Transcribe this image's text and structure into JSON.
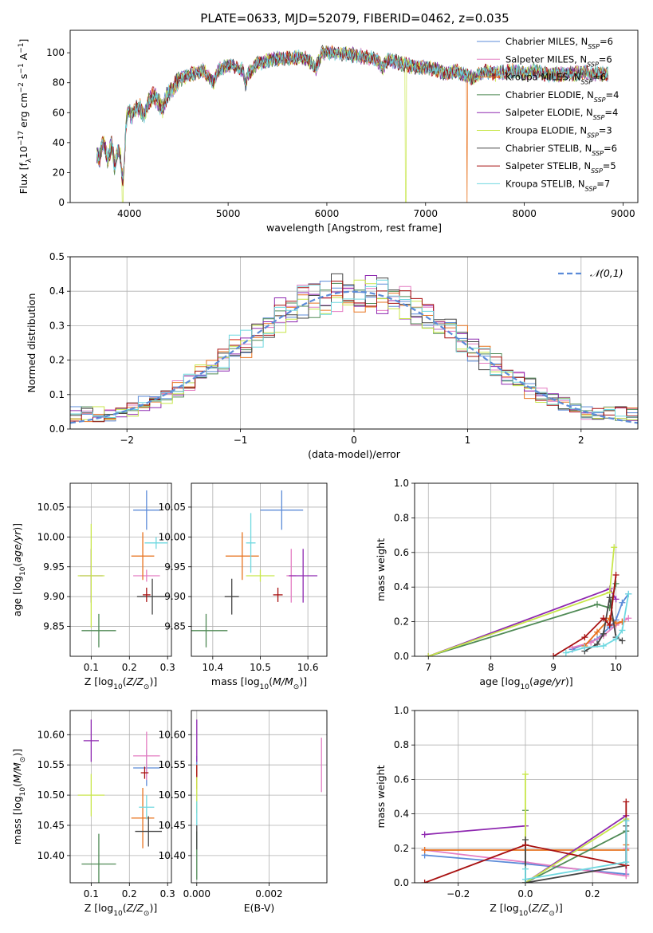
{
  "figure": {
    "title": "PLATE=0633, MJD=52079, FIBERID=0462, z=0.035"
  },
  "series": [
    {
      "name": "Chabrier MILES",
      "nssp": "6",
      "color": "#5b8bd8"
    },
    {
      "name": "Salpeter MILES",
      "nssp": "6",
      "color": "#e47cc2"
    },
    {
      "name": "Kroupa MILES",
      "nssp": "6",
      "color": "#e8731f"
    },
    {
      "name": "Chabrier ELODIE",
      "nssp": "4",
      "color": "#4f8a55"
    },
    {
      "name": "Salpeter ELODIE",
      "nssp": "4",
      "color": "#8e28b0"
    },
    {
      "name": "Kroupa ELODIE",
      "nssp": "3",
      "color": "#c8e64a"
    },
    {
      "name": "Chabrier STELIB",
      "nssp": "6",
      "color": "#444444"
    },
    {
      "name": "Salpeter STELIB",
      "nssp": "5",
      "color": "#a81010"
    },
    {
      "name": "Kroupa STELIB",
      "nssp": "7",
      "color": "#6fd8e0"
    }
  ],
  "chart_data": [
    {
      "id": "spectrum",
      "type": "line",
      "xlabel": "wavelength [Angstrom, rest frame]",
      "ylabel": "Flux [f_λ 10^-17 erg cm^-2 s^-1 A^-1]",
      "xlim": [
        3400,
        9150
      ],
      "ylim": [
        0,
        115
      ],
      "xticks": [
        4000,
        5000,
        6000,
        7000,
        8000,
        9000
      ],
      "yticks": [
        0,
        20,
        40,
        60,
        80,
        100
      ],
      "legend": "top-right",
      "x": [
        3670,
        3700,
        3740,
        3780,
        3820,
        3850,
        3880,
        3910,
        3935,
        3950,
        3965,
        3990,
        4020,
        4060,
        4100,
        4150,
        4200,
        4250,
        4300,
        4340,
        4380,
        4430,
        4480,
        4550,
        4650,
        4750,
        4850,
        4900,
        5000,
        5100,
        5150,
        5175,
        5200,
        5300,
        5400,
        5500,
        5600,
        5700,
        5800,
        5890,
        5950,
        6100,
        6200,
        6300,
        6400,
        6500,
        6563,
        6620,
        6700,
        6800,
        6900,
        7000,
        7100,
        7200,
        7300,
        7400,
        7500,
        7600,
        7700,
        7800,
        7900,
        8000,
        8100,
        8200,
        8300,
        8400,
        8500,
        8600,
        8700,
        8850
      ],
      "y": [
        32,
        30,
        42,
        28,
        40,
        24,
        35,
        30,
        12,
        28,
        52,
        62,
        58,
        62,
        64,
        58,
        68,
        72,
        66,
        62,
        72,
        76,
        80,
        84,
        86,
        88,
        80,
        88,
        92,
        90,
        88,
        78,
        86,
        93,
        95,
        96,
        96,
        97,
        96,
        90,
        100,
        100,
        99,
        98,
        97,
        96,
        90,
        95,
        94,
        92,
        90,
        90,
        89,
        86,
        88,
        85,
        83,
        88,
        86,
        87,
        88,
        86,
        88,
        86,
        85,
        86,
        86,
        87,
        86,
        86
      ],
      "dropouts": [
        {
          "series": "Kroupa ELODIE",
          "x": 3930
        },
        {
          "series": "Kroupa ELODIE",
          "x": 6800
        },
        {
          "series": "Kroupa MILES",
          "x": 7420
        }
      ]
    },
    {
      "id": "residuals",
      "type": "step",
      "xlabel": "(data-model)/error",
      "ylabel": "Normed distribution",
      "xlim": [
        -2.5,
        2.5
      ],
      "ylim": [
        0,
        0.5
      ],
      "xticks": [
        -2,
        -1,
        0,
        1,
        2
      ],
      "yticks": [
        0.0,
        0.1,
        0.2,
        0.3,
        0.4,
        0.5
      ],
      "grid": true,
      "legend": "top-right",
      "reference_curve": {
        "name": "𝒩(0,1)",
        "color": "#5b8bd8",
        "mean": 0,
        "sigma": 1
      },
      "bin_width": 0.1
    },
    {
      "id": "age-vs-Z",
      "type": "errorbar",
      "xlabel": "Z [log10(Z/Z⊙)]",
      "ylabel": "age [log10(age/yr)]",
      "xlim": [
        0.045,
        0.31
      ],
      "ylim": [
        9.8,
        10.09
      ],
      "xticks": [
        0.1,
        0.2,
        0.3
      ],
      "yticks": [
        9.85,
        9.9,
        9.95,
        10.0,
        10.05
      ],
      "grid": true,
      "points": [
        {
          "series": "Chabrier MILES",
          "x": 0.245,
          "xerr": 0.035,
          "y": 10.045,
          "yerr": 0.033
        },
        {
          "series": "Salpeter MILES",
          "x": 0.245,
          "xerr": 0.035,
          "y": 9.935,
          "yerr": 0.01
        },
        {
          "series": "Kroupa MILES",
          "x": 0.235,
          "xerr": 0.03,
          "y": 9.968,
          "yerr": 0.04
        },
        {
          "series": "Chabrier ELODIE",
          "x": 0.12,
          "xerr": 0.045,
          "y": 9.843,
          "yerr": 0.028
        },
        {
          "series": "Salpeter ELODIE",
          "x": 0.1,
          "xerr": 0.03,
          "y": 9.935,
          "yerr": 0.045
        },
        {
          "series": "Kroupa ELODIE",
          "x": 0.1,
          "xerr": 0.035,
          "y": 9.935,
          "yerr": 0.087
        },
        {
          "series": "Chabrier STELIB",
          "x": 0.26,
          "xerr": 0.04,
          "y": 9.9,
          "yerr": 0.03
        },
        {
          "series": "Salpeter STELIB",
          "x": 0.245,
          "xerr": 0.01,
          "y": 9.903,
          "yerr": 0.012
        },
        {
          "series": "Kroupa STELIB",
          "x": 0.27,
          "xerr": 0.03,
          "y": 9.99,
          "yerr": 0.01
        }
      ]
    },
    {
      "id": "age-vs-mass",
      "type": "errorbar",
      "xlabel": "mass [log10(M/M⊙)]",
      "ylabel": "",
      "xlim": [
        10.355,
        10.64
      ],
      "ylim": [
        9.8,
        10.09
      ],
      "xticks": [
        10.4,
        10.5,
        10.6
      ],
      "yticks": [
        9.85,
        9.9,
        9.95,
        10.0,
        10.05
      ],
      "grid": true,
      "points": [
        {
          "series": "Chabrier MILES",
          "x": 10.545,
          "xerr": 0.045,
          "y": 10.045,
          "yerr": 0.033
        },
        {
          "series": "Salpeter MILES",
          "x": 10.565,
          "xerr": 0.01,
          "y": 9.935,
          "yerr": 0.045
        },
        {
          "series": "Kroupa MILES",
          "x": 10.462,
          "xerr": 0.035,
          "y": 9.968,
          "yerr": 0.04
        },
        {
          "series": "Chabrier ELODIE",
          "x": 10.386,
          "xerr": 0.045,
          "y": 9.843,
          "yerr": 0.028
        },
        {
          "series": "Salpeter ELODIE",
          "x": 10.59,
          "xerr": 0.03,
          "y": 9.935,
          "yerr": 0.045
        },
        {
          "series": "Kroupa ELODIE",
          "x": 10.5,
          "xerr": 0.03,
          "y": 9.935,
          "yerr": 0.01
        },
        {
          "series": "Chabrier STELIB",
          "x": 10.44,
          "xerr": 0.015,
          "y": 9.9,
          "yerr": 0.03
        },
        {
          "series": "Salpeter STELIB",
          "x": 10.537,
          "xerr": 0.01,
          "y": 9.903,
          "yerr": 0.012
        },
        {
          "series": "Kroupa STELIB",
          "x": 10.48,
          "xerr": 0.01,
          "y": 9.99,
          "yerr": 0.05
        }
      ]
    },
    {
      "id": "weight-vs-age",
      "type": "line",
      "xlabel": "age [log10(age/yr)]",
      "ylabel": "mass weight",
      "xlim": [
        6.78,
        10.35
      ],
      "ylim": [
        0,
        1
      ],
      "xticks": [
        7,
        8,
        9,
        10
      ],
      "yticks": [
        0.0,
        0.2,
        0.4,
        0.6,
        0.8,
        1.0
      ],
      "grid": true,
      "lines": [
        {
          "series": "Chabrier MILES",
          "x": [
            9.3,
            9.7,
            9.9,
            10.0,
            10.1,
            10.2
          ],
          "y": [
            0.04,
            0.1,
            0.17,
            0.21,
            0.31,
            0.36
          ]
        },
        {
          "series": "Salpeter MILES",
          "x": [
            9.3,
            9.6,
            9.8,
            10.0,
            10.1,
            10.2
          ],
          "y": [
            0.05,
            0.08,
            0.12,
            0.18,
            0.2,
            0.22
          ]
        },
        {
          "series": "Kroupa MILES",
          "x": [
            9.5,
            9.7,
            9.9,
            10.0,
            10.1
          ],
          "y": [
            0.06,
            0.14,
            0.22,
            0.19,
            0.2
          ]
        },
        {
          "series": "Chabrier ELODIE",
          "x": [
            7.0,
            9.7,
            9.9,
            10.0
          ],
          "y": [
            0.0,
            0.3,
            0.28,
            0.42
          ]
        },
        {
          "series": "Salpeter ELODIE",
          "x": [
            7.0,
            9.9,
            10.0
          ],
          "y": [
            0.0,
            0.39,
            0.33
          ]
        },
        {
          "series": "Kroupa ELODIE",
          "x": [
            7.0,
            9.9,
            9.97
          ],
          "y": [
            0.0,
            0.37,
            0.63
          ]
        },
        {
          "series": "Chabrier STELIB",
          "x": [
            9.5,
            9.7,
            9.8,
            9.9,
            10.0,
            10.1
          ],
          "y": [
            0.03,
            0.07,
            0.13,
            0.34,
            0.11,
            0.09
          ]
        },
        {
          "series": "Salpeter STELIB",
          "x": [
            9.0,
            9.5,
            9.8,
            9.9,
            10.0
          ],
          "y": [
            0.0,
            0.11,
            0.22,
            0.18,
            0.47
          ]
        },
        {
          "series": "Kroupa STELIB",
          "x": [
            9.2,
            9.5,
            9.8,
            10.0,
            10.1,
            10.2
          ],
          "y": [
            0.02,
            0.05,
            0.06,
            0.1,
            0.15,
            0.36
          ]
        }
      ]
    },
    {
      "id": "mass-vs-Z",
      "type": "errorbar",
      "xlabel": "Z [log10(Z/Z⊙)]",
      "ylabel": "mass [log10(M/M⊙)]",
      "xlim": [
        0.045,
        0.31
      ],
      "ylim": [
        10.355,
        10.64
      ],
      "xticks": [
        0.1,
        0.2,
        0.3
      ],
      "yticks": [
        10.4,
        10.45,
        10.5,
        10.55,
        10.6
      ],
      "grid": true,
      "points": [
        {
          "series": "Chabrier MILES",
          "x": 0.245,
          "xerr": 0.035,
          "y": 10.545,
          "yerr": 0.03
        },
        {
          "series": "Salpeter MILES",
          "x": 0.245,
          "xerr": 0.035,
          "y": 10.565,
          "yerr": 0.04
        },
        {
          "series": "Kroupa MILES",
          "x": 0.235,
          "xerr": 0.03,
          "y": 10.462,
          "yerr": 0.05
        },
        {
          "series": "Chabrier ELODIE",
          "x": 0.12,
          "xerr": 0.045,
          "y": 10.386,
          "yerr": 0.05
        },
        {
          "series": "Salpeter ELODIE",
          "x": 0.1,
          "xerr": 0.02,
          "y": 10.59,
          "yerr": 0.035
        },
        {
          "series": "Kroupa ELODIE",
          "x": 0.1,
          "xerr": 0.035,
          "y": 10.5,
          "yerr": 0.035
        },
        {
          "series": "Chabrier STELIB",
          "x": 0.25,
          "xerr": 0.035,
          "y": 10.44,
          "yerr": 0.025
        },
        {
          "series": "Salpeter STELIB",
          "x": 0.24,
          "xerr": 0.01,
          "y": 10.537,
          "yerr": 0.01
        },
        {
          "series": "Kroupa STELIB",
          "x": 0.245,
          "xerr": 0.02,
          "y": 10.48,
          "yerr": 0.02
        }
      ]
    },
    {
      "id": "mass-vs-ebv",
      "type": "errorbar",
      "xlabel": "E(B-V)",
      "ylabel": "",
      "xlim": [
        -0.00015,
        0.0036
      ],
      "ylim": [
        10.355,
        10.64
      ],
      "xticks": [
        0.0,
        0.002
      ],
      "yticks": [
        10.4,
        10.45,
        10.5,
        10.55,
        10.6
      ],
      "grid": true,
      "points": [
        {
          "series": "Chabrier MILES",
          "x": 0.0,
          "xerr": 0,
          "y": 10.545,
          "yerr": 0.02
        },
        {
          "series": "Salpeter MILES",
          "x": 0.00345,
          "xerr": 0,
          "y": 10.55,
          "yerr": 0.045
        },
        {
          "series": "Kroupa MILES",
          "x": 0.0,
          "xerr": 0,
          "y": 10.53,
          "yerr": 0.02
        },
        {
          "series": "Chabrier ELODIE",
          "x": 0.0,
          "xerr": 0,
          "y": 10.4,
          "yerr": 0.04
        },
        {
          "series": "Salpeter ELODIE",
          "x": 0.0,
          "xerr": 0,
          "y": 10.59,
          "yerr": 0.035
        },
        {
          "series": "Kroupa ELODIE",
          "x": 0.0,
          "xerr": 0,
          "y": 10.5,
          "yerr": 0.03
        },
        {
          "series": "Chabrier STELIB",
          "x": 0.0,
          "xerr": 0,
          "y": 10.43,
          "yerr": 0.02
        },
        {
          "series": "Salpeter STELIB",
          "x": 0.0,
          "xerr": 0,
          "y": 10.54,
          "yerr": 0.01
        },
        {
          "series": "Kroupa STELIB",
          "x": 0.0,
          "xerr": 0,
          "y": 10.47,
          "yerr": 0.02
        }
      ]
    },
    {
      "id": "weight-vs-Z",
      "type": "line",
      "xlabel": "Z [log10(Z/Z⊙)]",
      "ylabel": "mass weight",
      "xlim": [
        -0.33,
        0.335
      ],
      "ylim": [
        0,
        1
      ],
      "xticks": [
        -0.2,
        0.0,
        0.2
      ],
      "yticks": [
        0.0,
        0.2,
        0.4,
        0.6,
        0.8,
        1.0
      ],
      "grid": true,
      "lines": [
        {
          "series": "Chabrier MILES",
          "x": [
            -0.3,
            0.0,
            0.3,
            0.3
          ],
          "y": [
            0.16,
            0.11,
            0.05,
            0.36
          ]
        },
        {
          "series": "Salpeter MILES",
          "x": [
            -0.3,
            0.0,
            0.3,
            0.3
          ],
          "y": [
            0.19,
            0.12,
            0.04,
            0.2
          ]
        },
        {
          "series": "Kroupa MILES",
          "x": [
            -0.3,
            0.0,
            0.3,
            0.3
          ],
          "y": [
            0.19,
            0.19,
            0.19,
            0.22
          ]
        },
        {
          "series": "Chabrier ELODIE",
          "x": [
            0.0,
            0.0,
            0.3
          ],
          "y": [
            0.42,
            0.0,
            0.3
          ]
        },
        {
          "series": "Salpeter ELODIE",
          "x": [
            -0.3,
            0.0,
            0.0,
            0.3
          ],
          "y": [
            0.28,
            0.33,
            0.0,
            0.39
          ]
        },
        {
          "series": "Kroupa ELODIE",
          "x": [
            0.0,
            0.0,
            0.3
          ],
          "y": [
            0.63,
            0.0,
            0.37
          ]
        },
        {
          "series": "Chabrier STELIB",
          "x": [
            0.0,
            0.0,
            0.3,
            0.3
          ],
          "y": [
            0.25,
            0.0,
            0.1,
            0.33
          ]
        },
        {
          "series": "Salpeter STELIB",
          "x": [
            -0.3,
            0.0,
            0.3,
            0.3
          ],
          "y": [
            0.0,
            0.22,
            0.1,
            0.47
          ]
        },
        {
          "series": "Kroupa STELIB",
          "x": [
            0.0,
            0.0,
            0.3,
            0.3
          ],
          "y": [
            0.08,
            0.02,
            0.12,
            0.36
          ]
        }
      ]
    }
  ]
}
